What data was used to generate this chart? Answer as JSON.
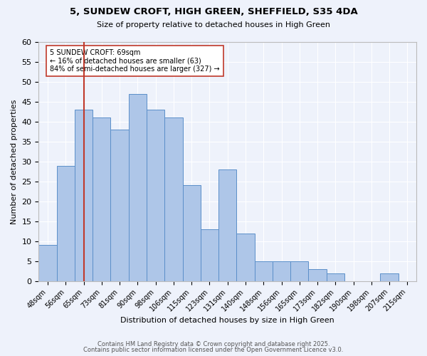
{
  "title_line1": "5, SUNDEW CROFT, HIGH GREEN, SHEFFIELD, S35 4DA",
  "title_line2": "Size of property relative to detached houses in High Green",
  "xlabel": "Distribution of detached houses by size in High Green",
  "ylabel": "Number of detached properties",
  "bar_color": "#aec6e8",
  "bar_edge_color": "#5b8fc9",
  "background_color": "#eef2fb",
  "grid_color": "#ffffff",
  "annotation_text": "5 SUNDEW CROFT: 69sqm\n← 16% of detached houses are smaller (63)\n84% of semi-detached houses are larger (327) →",
  "vline_color": "#c0392b",
  "vline_x_bin": 1,
  "categories": [
    "48sqm",
    "56sqm",
    "65sqm",
    "73sqm",
    "81sqm",
    "90sqm",
    "98sqm",
    "106sqm",
    "115sqm",
    "123sqm",
    "131sqm",
    "140sqm",
    "148sqm",
    "156sqm",
    "165sqm",
    "173sqm",
    "182sqm",
    "190sqm",
    "198sqm",
    "207sqm",
    "215sqm"
  ],
  "values": [
    9,
    29,
    43,
    41,
    38,
    47,
    43,
    41,
    24,
    13,
    28,
    12,
    5,
    5,
    5,
    3,
    2,
    0,
    0,
    2,
    0
  ],
  "ylim": [
    0,
    60
  ],
  "yticks": [
    0,
    5,
    10,
    15,
    20,
    25,
    30,
    35,
    40,
    45,
    50,
    55,
    60
  ],
  "footnote1": "Contains HM Land Registry data © Crown copyright and database right 2025.",
  "footnote2": "Contains public sector information licensed under the Open Government Licence v3.0."
}
